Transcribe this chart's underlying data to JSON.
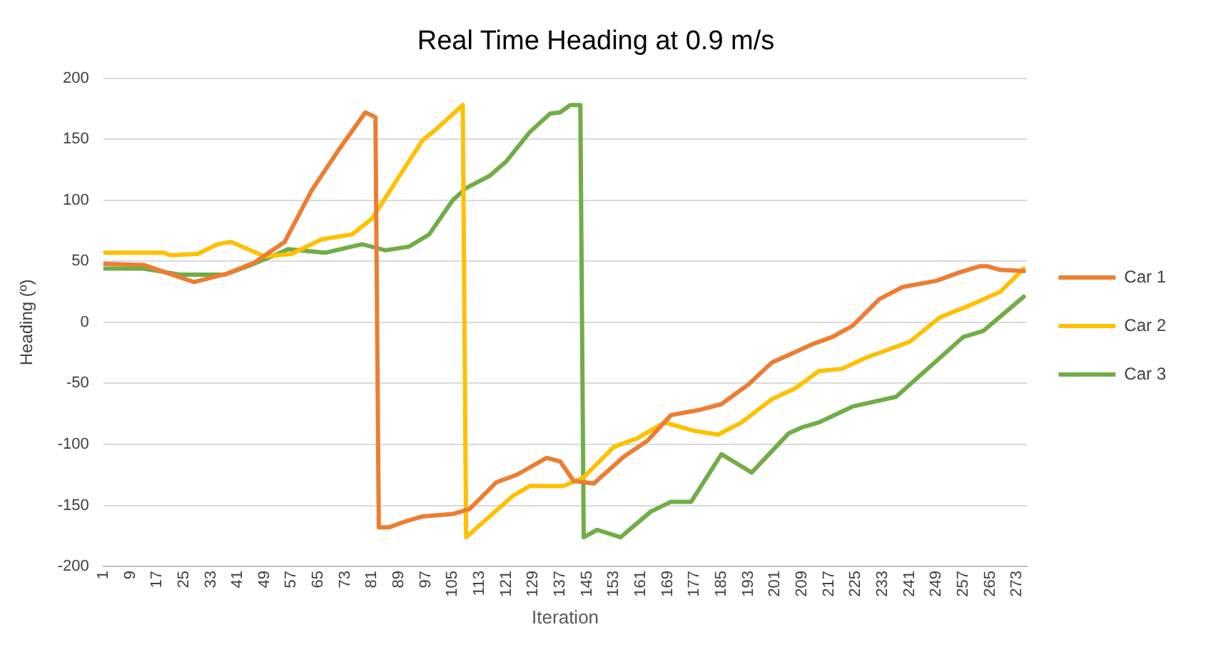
{
  "chart_data": {
    "type": "line",
    "title": "Real Time Heading at 0.9 m/s",
    "xlabel": "Iteration",
    "ylabel": "Heading (º)",
    "xlim": [
      1,
      276
    ],
    "xticks": [
      1,
      9,
      17,
      25,
      33,
      41,
      49,
      57,
      65,
      73,
      81,
      89,
      97,
      105,
      113,
      121,
      129,
      137,
      145,
      153,
      161,
      169,
      177,
      185,
      193,
      201,
      209,
      217,
      225,
      233,
      241,
      249,
      257,
      265,
      273
    ],
    "ylim": [
      -200,
      200
    ],
    "yticks": [
      -200,
      -150,
      -100,
      -50,
      0,
      50,
      100,
      150,
      200
    ],
    "grid": "y",
    "legend": "right",
    "marker": "none",
    "line_style": "solid",
    "series": [
      {
        "name": "Car 1",
        "color": "#ed7d31",
        "x": [
          1,
          13,
          28,
          38,
          46,
          55,
          63,
          71,
          79,
          82,
          83,
          86,
          91,
          96,
          105,
          110,
          118,
          124,
          133,
          137,
          141,
          147,
          156,
          163,
          170,
          178,
          185,
          193,
          200,
          212,
          218,
          224,
          232,
          239,
          249,
          256,
          262,
          264,
          268,
          275
        ],
        "values": [
          48,
          47,
          33,
          40,
          49,
          66,
          108,
          141,
          172,
          168,
          -168,
          -168,
          -163,
          -159,
          -157,
          -153,
          -131,
          -125,
          -111,
          -114,
          -130,
          -132,
          -110,
          -97,
          -76,
          -72,
          -67,
          -51,
          -33,
          -18,
          -12,
          -3,
          19,
          29,
          34,
          41,
          46,
          46,
          43,
          42
        ]
      },
      {
        "name": "Car 2",
        "color": "#ffc000",
        "x": [
          1,
          19,
          21,
          29,
          35,
          39,
          49,
          57,
          66,
          75,
          81,
          88,
          96,
          100,
          108,
          109,
          116,
          123,
          128,
          138,
          144,
          153,
          160,
          168,
          177,
          184,
          191,
          200,
          207,
          214,
          221,
          228,
          241,
          250,
          259,
          268,
          275
        ],
        "values": [
          57,
          57,
          55,
          56,
          64,
          66,
          54,
          56,
          68,
          72,
          85,
          115,
          149,
          158,
          178,
          -176,
          -159,
          -142,
          -134,
          -134,
          -127,
          -102,
          -95,
          -82,
          -89,
          -92,
          -82,
          -63,
          -54,
          -40,
          -38,
          -29,
          -16,
          4,
          14,
          25,
          44
        ]
      },
      {
        "name": "Car 3",
        "color": "#70ad47",
        "x": [
          1,
          13,
          24,
          37,
          44,
          52,
          56,
          67,
          78,
          85,
          92,
          98,
          105,
          109,
          116,
          121,
          128,
          134,
          137,
          140,
          143,
          144,
          148,
          155,
          164,
          170,
          176,
          185,
          194,
          205,
          209,
          214,
          224,
          237,
          246,
          257,
          263,
          275
        ],
        "values": [
          44,
          44,
          39,
          39,
          46,
          55,
          60,
          57,
          64,
          59,
          62,
          72,
          100,
          110,
          120,
          132,
          156,
          171,
          172,
          178,
          178,
          -176,
          -170,
          -176,
          -155,
          -147,
          -147,
          -108,
          -123,
          -91,
          -86,
          -82,
          -69,
          -61,
          -39,
          -12,
          -7,
          21
        ]
      }
    ]
  }
}
